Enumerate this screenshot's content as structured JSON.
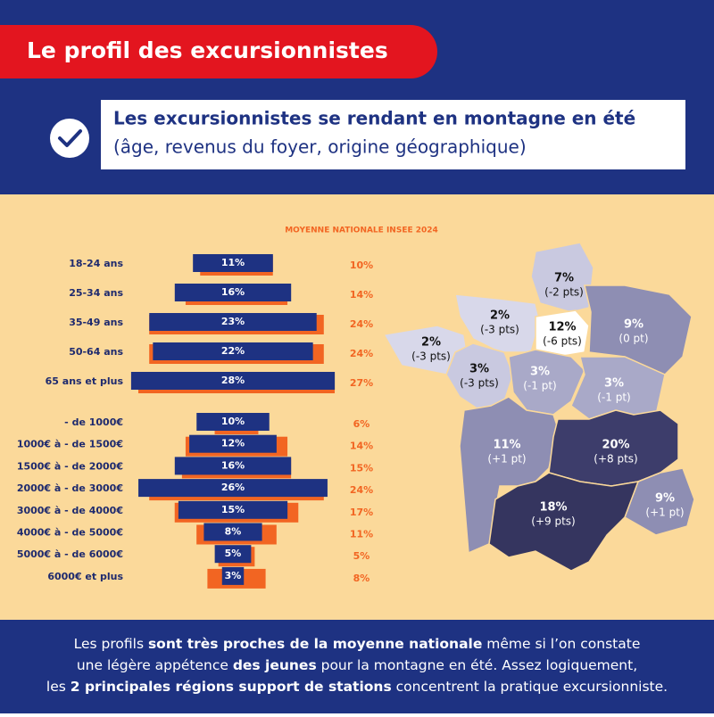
{
  "header": {
    "title": "Le profil des excursionnistes",
    "subtitle": "Les excursionnistes se rendant en montagne en été",
    "subtitle_detail": "(âge, revenus du foyer, origine géographique)"
  },
  "chart_data": [
    {
      "type": "bar",
      "categories": [
        "18-24 ans",
        "25-34 ans",
        "35-49 ans",
        "50-64 ans",
        "65 ans et plus"
      ],
      "series": [
        {
          "color": "#1e3282",
          "values": [
            11,
            16,
            23,
            22,
            28
          ],
          "value_labels": [
            "11%",
            "16%",
            "23%",
            "22%",
            "28%"
          ]
        },
        {
          "name": "MOYENNE NATIONALE INSEE 2024",
          "color": "#f26522",
          "values": [
            10,
            14,
            24,
            24,
            27
          ],
          "value_labels": [
            "10%",
            "14%",
            "24%",
            "24%",
            "27%"
          ]
        }
      ]
    },
    {
      "type": "bar",
      "categories": [
        "- de 1000€",
        "1000€ à - de 1500€",
        "1500€ à - de 2000€",
        "2000€ à - de 3000€",
        "3000€ à - de 4000€",
        "4000€ à - de 5000€",
        "5000€ à - de 6000€",
        "6000€ et plus"
      ],
      "series": [
        {
          "color": "#1e3282",
          "values": [
            10,
            12,
            16,
            26,
            15,
            8,
            5,
            3
          ],
          "value_labels": [
            "10%",
            "12%",
            "16%",
            "26%",
            "15%",
            "8%",
            "5%",
            "3%"
          ]
        },
        {
          "color": "#f26522",
          "values": [
            6,
            14,
            15,
            24,
            17,
            11,
            5,
            8
          ],
          "value_labels": [
            "6%",
            "14%",
            "15%",
            "24%",
            "17%",
            "11%",
            "5%",
            "8%"
          ]
        }
      ]
    }
  ],
  "map": {
    "regions": [
      {
        "value": "7%",
        "change": "(-2 pts)"
      },
      {
        "value": "2%",
        "change": "(-3 pts)"
      },
      {
        "value": "12%",
        "change": "(-6 pts)"
      },
      {
        "value": "9%",
        "change": "(0 pt)"
      },
      {
        "value": "2%",
        "change": "(-3 pts)"
      },
      {
        "value": "3%",
        "change": "(-3 pts)"
      },
      {
        "value": "3%",
        "change": "(-1 pt)"
      },
      {
        "value": "3%",
        "change": "(-1 pt)"
      },
      {
        "value": "11%",
        "change": "(+1 pt)"
      },
      {
        "value": "20%",
        "change": "(+8 pts)"
      },
      {
        "value": "9%",
        "change": "(+1 pt)"
      },
      {
        "value": "18%",
        "change": "(+9 pts)"
      }
    ]
  },
  "footer": {
    "lines": [
      [
        {
          "text": "Les profils "
        },
        {
          "text": "sont très proches de la moyenne nationale",
          "bold": true
        },
        {
          "text": " même si l’on constate"
        }
      ],
      [
        {
          "text": "une légère appétence "
        },
        {
          "text": "des jeunes",
          "bold": true
        },
        {
          "text": " pour la montagne en été. Assez logiquement,"
        }
      ],
      [
        {
          "text": "les "
        },
        {
          "text": "2 principales régions support de stations",
          "bold": true
        },
        {
          "text": " concentrent la pratique excursionniste."
        }
      ]
    ]
  }
}
